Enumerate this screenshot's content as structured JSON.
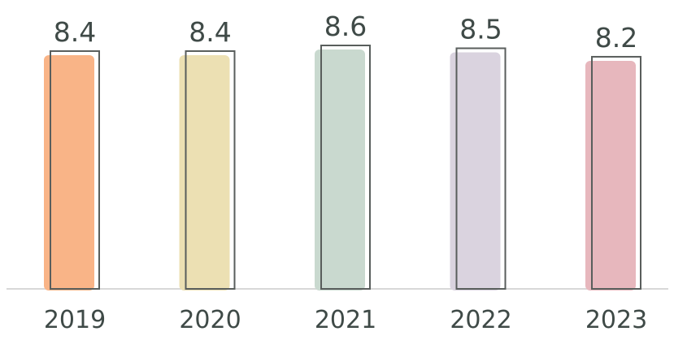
{
  "chart_data": {
    "type": "bar",
    "categories": [
      "2019",
      "2020",
      "2021",
      "2022",
      "2023"
    ],
    "values": [
      8.4,
      8.4,
      8.6,
      8.5,
      8.2
    ],
    "value_labels": [
      "8.4",
      "8.4",
      "8.6",
      "8.5",
      "8.2"
    ],
    "colors": [
      "#f9b487",
      "#ece0b3",
      "#c9d9cf",
      "#dad3df",
      "#e7b7bd"
    ],
    "outline_color": "#595e5c",
    "axis_color": "#d8d8d8",
    "title": "",
    "xlabel": "",
    "ylabel": "",
    "ylim": [
      0,
      8.6
    ],
    "grid": false,
    "legend": "none",
    "style": "hand-drawn"
  }
}
